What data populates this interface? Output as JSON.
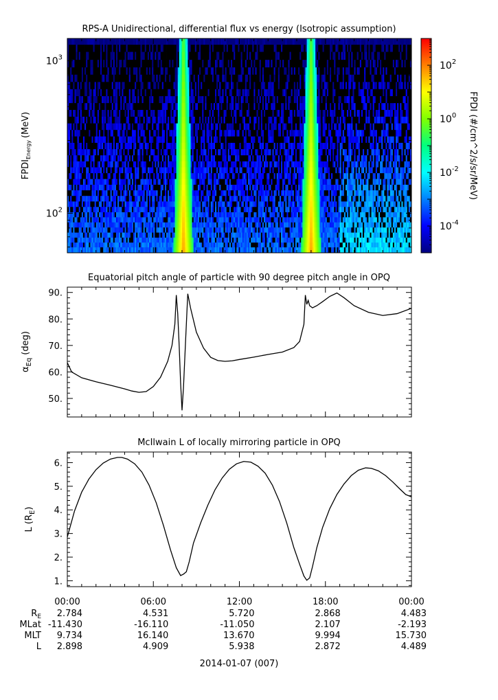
{
  "chart_data": [
    {
      "type": "heatmap",
      "title": "RPS-A Unidirectional, differential flux vs energy (Isotropic assumption)",
      "ylabel": "FPDI",
      "ylabel_sub": "Energy",
      "ylabel_unit": "(MeV)",
      "yscale": "log",
      "ylim": [
        55,
        1400
      ],
      "xlim_hours": [
        0,
        24
      ],
      "yticks": [
        {
          "v": 100,
          "base": "10",
          "exp": "2"
        },
        {
          "v": 1000,
          "base": "10",
          "exp": "3"
        }
      ],
      "energies_mev": [
        58,
        62,
        67,
        72,
        78,
        84,
        91,
        98,
        106,
        115,
        125,
        136,
        148,
        161,
        176,
        192,
        210,
        230,
        252,
        277,
        305,
        336,
        371,
        410,
        454,
        503,
        558,
        620,
        690,
        770,
        860,
        960,
        1080,
        1220,
        1340
      ],
      "bright_bands_hours": [
        {
          "from": 7.6,
          "to": 8.6
        },
        {
          "from": 16.5,
          "to": 17.5
        }
      ],
      "colorbar": {
        "label": "FPDI (#/cm^2/s/sr/MeV)",
        "scale": "log",
        "range": [
          1e-05,
          1000
        ],
        "ticks": [
          {
            "v": 100,
            "base": "10",
            "exp": "2"
          },
          {
            "v": 1,
            "base": "10",
            "exp": "0"
          },
          {
            "v": 0.01,
            "base": "10",
            "exp": "-2"
          },
          {
            "v": 0.0001,
            "base": "10",
            "exp": "-4"
          }
        ],
        "colors": [
          "#00007f",
          "#0000ff",
          "#0080ff",
          "#00ffff",
          "#00ff80",
          "#80ff00",
          "#ffff00",
          "#ff8000",
          "#ff0000"
        ]
      }
    },
    {
      "type": "line",
      "title": "Equatorial pitch angle of particle with 90 degree pitch angle in OPQ",
      "ylabel": "α",
      "ylabel_sub": "Eq",
      "ylabel_unit": "(deg)",
      "ylim": [
        43,
        92
      ],
      "yticks": [
        50,
        60,
        70,
        80,
        90
      ],
      "ytick_labels": [
        "50.",
        "60.",
        "70.",
        "80.",
        "90."
      ],
      "x_hours": [
        0,
        0.3,
        1,
        2,
        3,
        4,
        4.5,
        5,
        5.5,
        6,
        6.5,
        7,
        7.3,
        7.5,
        7.6,
        7.7,
        7.8,
        7.9,
        8.0,
        8.1,
        8.15,
        8.25,
        8.4,
        8.6,
        9,
        9.5,
        10,
        10.5,
        11,
        11.5,
        12,
        13,
        14,
        15,
        15.8,
        16.2,
        16.5,
        16.6,
        16.7,
        16.8,
        16.9,
        17.1,
        17.4,
        17.8,
        18.3,
        18.8,
        19.3,
        20,
        21,
        22,
        23,
        24
      ],
      "y_deg": [
        63.5,
        60,
        57.8,
        56.3,
        55,
        53.6,
        52.8,
        52.3,
        52.6,
        54.5,
        58,
        64,
        70,
        78,
        89,
        82,
        70,
        56,
        45.5,
        54,
        60,
        72,
        89.5,
        84,
        75,
        69,
        65.5,
        64.3,
        64,
        64.2,
        64.7,
        65.6,
        66.6,
        67.5,
        69.2,
        71.5,
        78,
        89,
        85.5,
        87,
        85,
        84.2,
        85,
        86.5,
        88.5,
        89.8,
        88,
        85,
        82.5,
        81.3,
        82,
        84
      ]
    },
    {
      "type": "line",
      "title": "McIlwain L of locally mirroring particle in OPQ",
      "ylabel": "L (R",
      "ylabel_sub": "E",
      "ylabel_unit": ")",
      "ylim": [
        0.75,
        6.45
      ],
      "yticks": [
        1,
        2,
        3,
        4,
        5,
        6
      ],
      "ytick_labels": [
        "1.",
        "2.",
        "3.",
        "4.",
        "5.",
        "6."
      ],
      "x_hours": [
        0,
        0.5,
        1,
        1.5,
        2,
        2.5,
        3,
        3.5,
        3.8,
        4.2,
        4.7,
        5.2,
        5.7,
        6.2,
        6.7,
        7.2,
        7.6,
        7.9,
        8.1,
        8.3,
        8.5,
        8.8,
        9.3,
        9.8,
        10.3,
        10.8,
        11.3,
        11.8,
        12.3,
        12.8,
        13.3,
        13.8,
        14.3,
        14.8,
        15.3,
        15.8,
        16.2,
        16.5,
        16.7,
        16.9,
        17.1,
        17.4,
        17.8,
        18.3,
        18.8,
        19.3,
        19.8,
        20.3,
        20.8,
        21.2,
        21.7,
        22.2,
        22.7,
        23.2,
        23.6,
        24
      ],
      "y_L": [
        2.85,
        3.95,
        4.75,
        5.3,
        5.7,
        5.98,
        6.15,
        6.22,
        6.22,
        6.15,
        5.95,
        5.6,
        5.05,
        4.3,
        3.35,
        2.3,
        1.55,
        1.22,
        1.28,
        1.38,
        1.8,
        2.6,
        3.45,
        4.2,
        4.85,
        5.35,
        5.72,
        5.95,
        6.05,
        6.02,
        5.85,
        5.55,
        5.05,
        4.35,
        3.45,
        2.4,
        1.7,
        1.2,
        1.02,
        1.12,
        1.6,
        2.4,
        3.25,
        4.05,
        4.65,
        5.1,
        5.45,
        5.68,
        5.78,
        5.76,
        5.65,
        5.45,
        5.18,
        4.88,
        4.65,
        4.55
      ]
    }
  ],
  "time_axis": {
    "tick_labels": [
      "00:00",
      "06:00",
      "12:00",
      "18:00",
      "00:00"
    ],
    "date_label": "2014-01-07 (007)"
  },
  "ephemeris": {
    "rows": [
      {
        "label": "R",
        "label_sub": "E",
        "values": [
          "2.784",
          "4.531",
          "5.720",
          "2.868",
          "4.483"
        ]
      },
      {
        "label": "MLat",
        "label_sub": "",
        "values": [
          "-11.430",
          "-16.110",
          "-11.050",
          "2.107",
          "-2.193"
        ]
      },
      {
        "label": "MLT",
        "label_sub": "",
        "values": [
          "9.734",
          "16.140",
          "13.670",
          "9.994",
          "15.730"
        ]
      },
      {
        "label": "L",
        "label_sub": "",
        "values": [
          "2.898",
          "4.909",
          "5.938",
          "2.872",
          "4.489"
        ]
      }
    ]
  }
}
